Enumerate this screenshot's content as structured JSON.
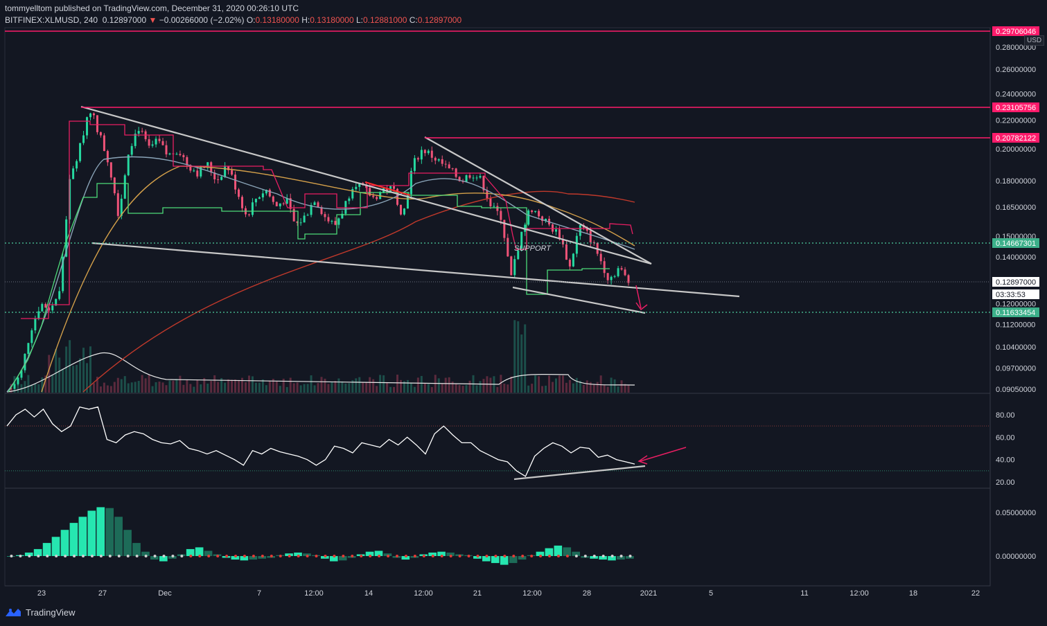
{
  "header": {
    "line1": "tommyelltom published on TradingView.com, December 31, 2020 00:26:10 UTC",
    "symbol": "BITFINEX:XLMUSD, 240",
    "last": "0.12897000",
    "change": "−0.00266000 (−2.02%)",
    "o_label": "O:",
    "o": "0.13180000",
    "h_label": "H:",
    "h": "0.13180000",
    "l_label": "L:",
    "l": "0.12881000",
    "c_label": "C:",
    "c": "0.12897000"
  },
  "currency": "USD",
  "annotation": "SUPPORT",
  "footer": "TradingView",
  "colors": {
    "background": "#131722",
    "up": "#26d9a0",
    "down": "#ef5378",
    "resistance": "#ff1b6b",
    "support": "#4dd0a0",
    "trend": "#c8c8c8"
  },
  "chart_data": [
    {
      "type": "candlestick",
      "y_scale": "log",
      "x_ticks": [
        "23",
        "27",
        "Dec",
        "7",
        "12:00",
        "14",
        "12:00",
        "21",
        "12:00",
        "28",
        "2021",
        "5",
        "11",
        "12:00",
        "18",
        "22"
      ],
      "y_ticks": [
        "0.28000000",
        "0.26000000",
        "0.24000000",
        "0.22000000",
        "0.20000000",
        "0.18000000",
        "0.16500000",
        "0.15000000",
        "0.14000000",
        "0.12000000",
        "0.11200000",
        "0.10400000",
        "0.09700000",
        "0.09050000"
      ],
      "price_labels": [
        {
          "value": "0.29706046",
          "kind": "resistance"
        },
        {
          "value": "0.23105756",
          "kind": "resistance"
        },
        {
          "value": "0.20782122",
          "kind": "resistance"
        },
        {
          "value": "0.14667301",
          "kind": "support"
        },
        {
          "value": "0.12897000",
          "kind": "last"
        },
        {
          "value": "03:33:53",
          "kind": "countdown"
        },
        {
          "value": "0.11633454",
          "kind": "support"
        }
      ],
      "close_path": [
        0.0906,
        0.095,
        0.11,
        0.12,
        0.118,
        0.125,
        0.18,
        0.2,
        0.23,
        0.21,
        0.19,
        0.16,
        0.2,
        0.215,
        0.2,
        0.205,
        0.195,
        0.2,
        0.19,
        0.185,
        0.19,
        0.18,
        0.19,
        0.175,
        0.16,
        0.17,
        0.175,
        0.165,
        0.17,
        0.155,
        0.16,
        0.17,
        0.16,
        0.155,
        0.165,
        0.18,
        0.175,
        0.17,
        0.175,
        0.175,
        0.16,
        0.19,
        0.2,
        0.195,
        0.19,
        0.185,
        0.18,
        0.185,
        0.18,
        0.165,
        0.16,
        0.13,
        0.15,
        0.165,
        0.16,
        0.155,
        0.15,
        0.135,
        0.155,
        0.15,
        0.14,
        0.13,
        0.135,
        0.129
      ]
    },
    {
      "type": "line",
      "name": "RSI",
      "y_ticks": [
        "80.00",
        "60.00",
        "40.00",
        "20.00"
      ],
      "values": [
        70,
        80,
        85,
        78,
        85,
        72,
        65,
        70,
        87,
        85,
        87,
        58,
        55,
        62,
        65,
        63,
        58,
        55,
        54,
        57,
        50,
        48,
        45,
        48,
        44,
        40,
        35,
        48,
        45,
        50,
        47,
        45,
        43,
        40,
        35,
        40,
        52,
        50,
        46,
        55,
        53,
        51,
        58,
        53,
        60,
        53,
        45,
        63,
        70,
        62,
        55,
        55,
        48,
        44,
        40,
        38,
        30,
        25,
        43,
        50,
        55,
        52,
        46,
        51,
        50,
        42,
        44,
        40,
        38,
        36
      ]
    },
    {
      "type": "bar",
      "name": "Momentum histogram",
      "y_ticks": [
        "0.05000000",
        "0.00000000"
      ],
      "values": [
        0,
        0.001,
        0.004,
        0.008,
        0.015,
        0.022,
        0.03,
        0.038,
        0.045,
        0.052,
        0.056,
        0.055,
        0.045,
        0.03,
        0.015,
        0.005,
        -0.004,
        -0.006,
        -0.003,
        0.002,
        0.008,
        0.01,
        0.006,
        0.002,
        -0.002,
        -0.004,
        -0.005,
        -0.004,
        -0.003,
        -0.002,
        0.001,
        0.003,
        0.004,
        0.003,
        0.001,
        -0.003,
        -0.006,
        -0.005,
        -0.002,
        0.002,
        0.005,
        0.006,
        0.003,
        -0.002,
        -0.004,
        -0.002,
        0.002,
        0.004,
        0.005,
        0.004,
        0.002,
        0.001,
        -0.003,
        -0.006,
        -0.008,
        -0.01,
        -0.008,
        -0.004,
        0.001,
        0.005,
        0.009,
        0.012,
        0.01,
        0.005,
        -0.002,
        -0.003,
        -0.004,
        -0.005,
        -0.004,
        -0.003
      ]
    }
  ]
}
